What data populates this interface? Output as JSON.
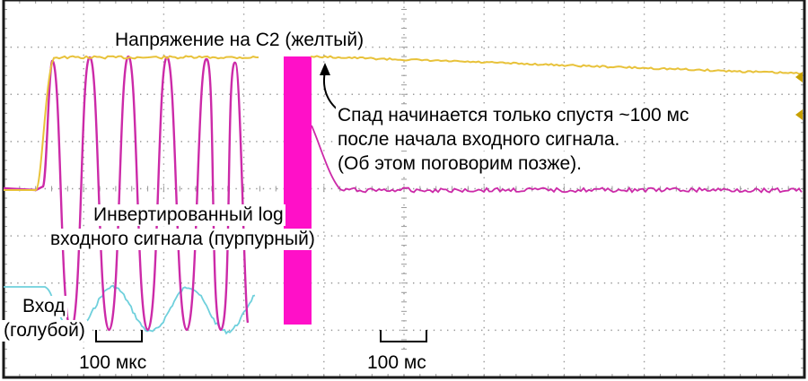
{
  "chart_data": {
    "type": "line",
    "title": "",
    "grid": true,
    "grid_divisions": {
      "x": 10,
      "y": 8
    },
    "colors": {
      "background": "#ffffff",
      "frame": "#1a1a1a",
      "grid": "#9a9a9a",
      "marker": "#c8a000",
      "yellow": "#e8c23a",
      "magenta": "#cc2aa8",
      "cyan": "#6fd0dc",
      "burst": "#ff10c8"
    },
    "series": [
      {
        "name": "Напряжение на C2 (желтый)",
        "color": "#e8c23a"
      },
      {
        "name": "Инвертированный log входного сигнала (пурпурный)",
        "color": "#cc2aa8"
      },
      {
        "name": "Вход (голубой)",
        "color": "#6fd0dc"
      }
    ],
    "annotations": {
      "yellow_title": "Напряжение на C2 (желтый)",
      "decay_note": [
        "Спад начинается только спустя ~100 мс",
        "после начала входного сигнала.",
        "(Об этом поговорим позже)."
      ],
      "magenta_label": [
        "Инвертированный log",
        "входного сигнала (пурпурный)"
      ],
      "input_label": [
        "Вход",
        "(голубой)"
      ],
      "scale_left": "100 мкс",
      "scale_right": "100 мс"
    }
  }
}
